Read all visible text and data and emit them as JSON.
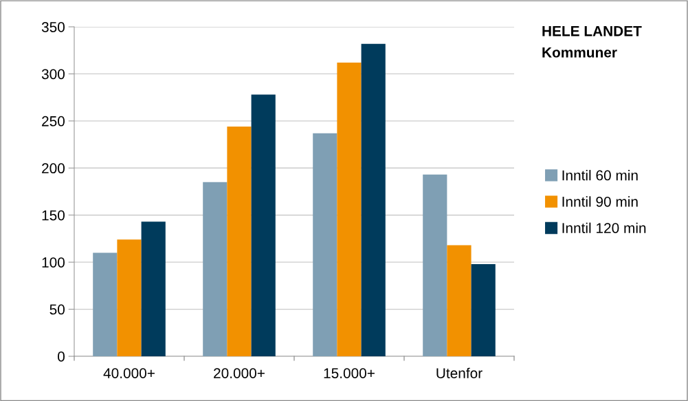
{
  "chart_data": {
    "type": "bar",
    "title": "HELE LANDET",
    "subtitle": "Kommuner",
    "categories": [
      "40.000+",
      "20.000+",
      "15.000+",
      "Utenfor"
    ],
    "series": [
      {
        "name": "Inntil 60 min",
        "color": "#7f9fb4",
        "values": [
          110,
          185,
          237,
          193
        ]
      },
      {
        "name": "Inntil 90 min",
        "color": "#f29100",
        "values": [
          124,
          244,
          312,
          118
        ]
      },
      {
        "name": "Inntil 120 min",
        "color": "#003b5c",
        "values": [
          143,
          278,
          332,
          98
        ]
      }
    ],
    "ylim": [
      0,
      350
    ],
    "yticks": [
      0,
      50,
      100,
      150,
      200,
      250,
      300,
      350
    ],
    "grid": "y",
    "legend": "right"
  }
}
